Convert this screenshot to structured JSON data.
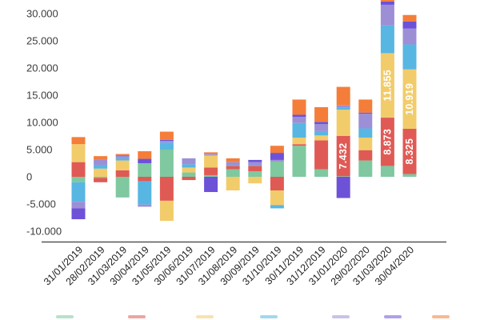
{
  "chart_data": {
    "type": "bar",
    "stacked": true,
    "categories": [
      "31/01/2019",
      "28/02/2019",
      "31/03/2019",
      "30/04/2019",
      "31/05/2019",
      "30/06/2019",
      "31/07/2019",
      "31/08/2019",
      "30/09/2019",
      "31/10/2019",
      "30/11/2019",
      "31/12/2019",
      "31/01/2020",
      "29/02/2020",
      "31/03/2020",
      "30/04/2020"
    ],
    "y_tick_labels": [
      "-10.000",
      "-5.000",
      "0",
      "5.000",
      "10.000",
      "15.000",
      "20.000",
      "25.000",
      "30.000"
    ],
    "ylim": [
      -10000,
      32000
    ],
    "grid": false,
    "series": [
      {
        "color": "#7fc8a0",
        "values": [
          -1000,
          -200,
          -3800,
          2500,
          5000,
          800,
          300,
          1400,
          1000,
          2800,
          5700,
          1400,
          100,
          3000,
          2000,
          500
        ]
      },
      {
        "color": "#e05a55",
        "values": [
          2700,
          -800,
          1200,
          -800,
          -4400,
          -600,
          1400,
          600,
          1000,
          -2500,
          300,
          5300,
          7432,
          1900,
          8873,
          8325
        ]
      },
      {
        "color": "#f2cc6b",
        "values": [
          3300,
          1500,
          1800,
          0,
          -3700,
          900,
          2200,
          -2500,
          -1200,
          -2700,
          1200,
          900,
          4800,
          2300,
          11855,
          10919
        ]
      },
      {
        "color": "#58b6e2",
        "values": [
          -3600,
          700,
          400,
          -4300,
          1300,
          600,
          100,
          200,
          200,
          -600,
          2700,
          800,
          400,
          1700,
          5100,
          4600
        ]
      },
      {
        "color": "#9c8fd6",
        "values": [
          -1200,
          900,
          500,
          -400,
          300,
          1100,
          200,
          500,
          500,
          300,
          1100,
          1300,
          400,
          2700,
          3800,
          2900
        ]
      },
      {
        "color": "#6d52d8",
        "values": [
          -2000,
          0,
          100,
          800,
          200,
          0,
          -2800,
          0,
          400,
          1300,
          400,
          400,
          -3900,
          200,
          600,
          1300
        ]
      },
      {
        "color": "#f47d3a",
        "values": [
          1300,
          700,
          200,
          1400,
          1500,
          0,
          300,
          700,
          0,
          1300,
          2800,
          2700,
          3400,
          2400,
          1500,
          1200
        ]
      }
    ],
    "data_labels": [
      {
        "category_index": 12,
        "series_index": 1,
        "text": "7.432"
      },
      {
        "category_index": 14,
        "series_index": 1,
        "text": "8.873"
      },
      {
        "category_index": 14,
        "series_index": 2,
        "text": "11.855"
      },
      {
        "category_index": 15,
        "series_index": 1,
        "text": "8.325"
      },
      {
        "category_index": 15,
        "series_index": 2,
        "text": "10.919"
      }
    ]
  },
  "legend": {
    "placement": "bottom",
    "colors": [
      "#7fc8a0",
      "#e05a55",
      "#f2cc6b",
      "#58b6e2",
      "#9c8fd6",
      "#6d52d8",
      "#f47d3a"
    ]
  }
}
